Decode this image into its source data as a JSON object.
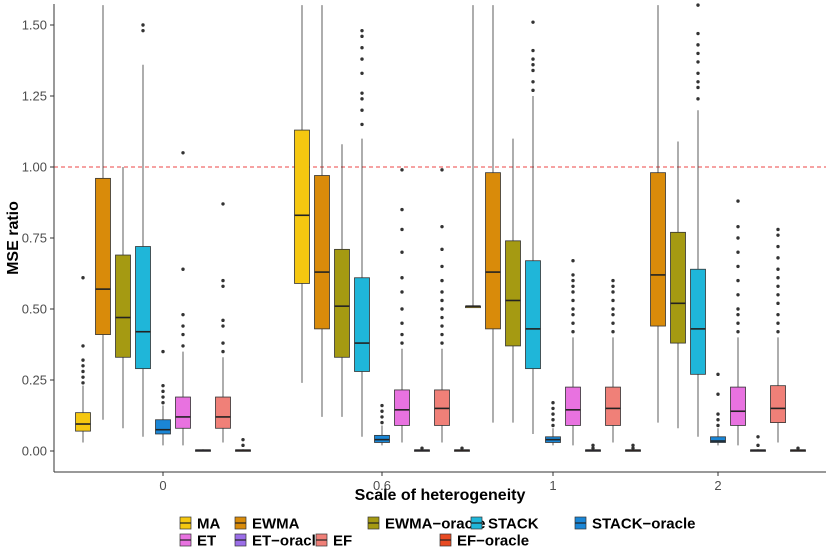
{
  "chart_data": {
    "type": "boxplot",
    "title": "",
    "xlabel": "Scale of heterogeneity",
    "ylabel": "MSE ratio",
    "ylim": [
      -0.07,
      1.57
    ],
    "yticks": [
      "0.00",
      "0.25",
      "0.50",
      "0.75",
      "1.00",
      "1.25",
      "1.50"
    ],
    "ytick_values": [
      0,
      0.25,
      0.5,
      0.75,
      1.0,
      1.25,
      1.5
    ],
    "reference_line": {
      "y": 1.0,
      "style": "dashed",
      "color": "#ee4444"
    },
    "categories": [
      "0",
      "0.6",
      "1",
      "2"
    ],
    "legend_position": "bottom",
    "series": [
      {
        "name": "MA",
        "color": "#f5c710",
        "boxes": [
          {
            "low": 0.03,
            "q1": 0.07,
            "median": 0.095,
            "q3": 0.135,
            "high": 0.23,
            "outliers": [
              0.24,
              0.26,
              0.28,
              0.3,
              0.32,
              0.37,
              0.61
            ]
          },
          {
            "low": 0.24,
            "q1": 0.59,
            "median": 0.83,
            "q3": 1.13,
            "high": 1.57,
            "outliers": []
          },
          {
            "low": 0.51,
            "q1": 0.51,
            "median": 0.51,
            "q3": 0.51,
            "high": 1.57,
            "outliers": []
          },
          null
        ]
      },
      {
        "name": "EWMA",
        "color": "#d98b0a",
        "boxes": [
          {
            "low": 0.11,
            "q1": 0.41,
            "median": 0.57,
            "q3": 0.96,
            "high": 1.57,
            "outliers": []
          },
          {
            "low": 0.12,
            "q1": 0.43,
            "median": 0.63,
            "q3": 0.97,
            "high": 1.57,
            "outliers": []
          },
          {
            "low": 0.1,
            "q1": 0.43,
            "median": 0.63,
            "q3": 0.98,
            "high": 1.57,
            "outliers": []
          },
          {
            "low": 0.1,
            "q1": 0.44,
            "median": 0.62,
            "q3": 0.98,
            "high": 1.57,
            "outliers": []
          }
        ]
      },
      {
        "name": "EWMA-oracle",
        "color": "#a59a12",
        "boxes": [
          {
            "low": 0.08,
            "q1": 0.33,
            "median": 0.47,
            "q3": 0.69,
            "high": 1.0,
            "outliers": []
          },
          {
            "low": 0.12,
            "q1": 0.33,
            "median": 0.51,
            "q3": 0.71,
            "high": 1.08,
            "outliers": []
          },
          {
            "low": 0.1,
            "q1": 0.37,
            "median": 0.53,
            "q3": 0.74,
            "high": 1.1,
            "outliers": []
          },
          {
            "low": 0.08,
            "q1": 0.38,
            "median": 0.52,
            "q3": 0.77,
            "high": 1.09,
            "outliers": []
          }
        ]
      },
      {
        "name": "STACK",
        "color": "#1fb6d9",
        "boxes": [
          {
            "low": 0.05,
            "q1": 0.29,
            "median": 0.42,
            "q3": 0.72,
            "high": 1.36,
            "outliers": [
              1.48,
              1.5
            ]
          },
          {
            "low": 0.05,
            "q1": 0.28,
            "median": 0.38,
            "q3": 0.61,
            "high": 1.1,
            "outliers": [
              1.15,
              1.2,
              1.24,
              1.26,
              1.33,
              1.38,
              1.42,
              1.46,
              1.48
            ]
          },
          {
            "low": 0.06,
            "q1": 0.29,
            "median": 0.43,
            "q3": 0.67,
            "high": 1.25,
            "outliers": [
              1.27,
              1.3,
              1.34,
              1.36,
              1.38,
              1.41,
              1.51
            ]
          },
          {
            "low": 0.05,
            "q1": 0.27,
            "median": 0.43,
            "q3": 0.64,
            "high": 1.2,
            "outliers": [
              1.24,
              1.28,
              1.3,
              1.33,
              1.37,
              1.4,
              1.43,
              1.47,
              1.57
            ]
          }
        ]
      },
      {
        "name": "STACK-oracle",
        "color": "#1a86d6",
        "boxes": [
          {
            "low": 0.02,
            "q1": 0.06,
            "median": 0.075,
            "q3": 0.11,
            "high": 0.16,
            "outliers": [
              0.17,
              0.19,
              0.21,
              0.23,
              0.35
            ]
          },
          {
            "low": 0.02,
            "q1": 0.03,
            "median": 0.04,
            "q3": 0.055,
            "high": 0.09,
            "outliers": [
              0.1,
              0.12,
              0.14,
              0.16
            ]
          },
          {
            "low": 0.02,
            "q1": 0.03,
            "median": 0.04,
            "q3": 0.05,
            "high": 0.08,
            "outliers": [
              0.09,
              0.11,
              0.13,
              0.15,
              0.17
            ]
          },
          {
            "low": 0.02,
            "q1": 0.03,
            "median": 0.035,
            "q3": 0.05,
            "high": 0.08,
            "outliers": [
              0.09,
              0.11,
              0.13,
              0.2,
              0.27
            ]
          }
        ]
      },
      {
        "name": "ET",
        "color": "#e872e0",
        "boxes": [
          {
            "low": 0.02,
            "q1": 0.08,
            "median": 0.12,
            "q3": 0.19,
            "high": 0.35,
            "outliers": [
              0.37,
              0.41,
              0.44,
              0.48,
              0.64,
              1.05
            ]
          },
          {
            "low": 0.03,
            "q1": 0.09,
            "median": 0.145,
            "q3": 0.215,
            "high": 0.36,
            "outliers": [
              0.38,
              0.41,
              0.45,
              0.5,
              0.56,
              0.61,
              0.7,
              0.78,
              0.85,
              0.99
            ]
          },
          {
            "low": 0.02,
            "q1": 0.09,
            "median": 0.145,
            "q3": 0.225,
            "high": 0.4,
            "outliers": [
              0.42,
              0.45,
              0.48,
              0.5,
              0.53,
              0.56,
              0.58,
              0.6,
              0.62,
              0.67
            ]
          },
          {
            "low": 0.02,
            "q1": 0.09,
            "median": 0.14,
            "q3": 0.225,
            "high": 0.4,
            "outliers": [
              0.42,
              0.45,
              0.48,
              0.5,
              0.55,
              0.6,
              0.65,
              0.7,
              0.75,
              0.79,
              0.88
            ]
          }
        ]
      },
      {
        "name": "ET-oracle",
        "color": "#9b6ee8",
        "boxes": [
          {
            "low": 0.0,
            "q1": 0.002,
            "median": 0.003,
            "q3": 0.004,
            "high": 0.006,
            "outliers": []
          },
          {
            "low": 0.0,
            "q1": 0.002,
            "median": 0.003,
            "q3": 0.004,
            "high": 0.006,
            "outliers": [
              0.01
            ]
          },
          {
            "low": 0.0,
            "q1": 0.002,
            "median": 0.003,
            "q3": 0.004,
            "high": 0.006,
            "outliers": [
              0.01,
              0.02
            ]
          },
          {
            "low": 0.0,
            "q1": 0.002,
            "median": 0.003,
            "q3": 0.004,
            "high": 0.006,
            "outliers": [
              0.02,
              0.05
            ]
          }
        ]
      },
      {
        "name": "EF",
        "color": "#f08078",
        "boxes": [
          {
            "low": 0.03,
            "q1": 0.08,
            "median": 0.12,
            "q3": 0.19,
            "high": 0.33,
            "outliers": [
              0.35,
              0.38,
              0.44,
              0.46,
              0.58,
              0.6,
              0.87
            ]
          },
          {
            "low": 0.03,
            "q1": 0.09,
            "median": 0.15,
            "q3": 0.215,
            "high": 0.36,
            "outliers": [
              0.38,
              0.41,
              0.44,
              0.47,
              0.5,
              0.53,
              0.56,
              0.6,
              0.65,
              0.71,
              0.79,
              0.99
            ]
          },
          {
            "low": 0.03,
            "q1": 0.09,
            "median": 0.15,
            "q3": 0.225,
            "high": 0.4,
            "outliers": [
              0.42,
              0.45,
              0.48,
              0.5,
              0.53,
              0.56,
              0.58,
              0.6
            ]
          },
          {
            "low": 0.03,
            "q1": 0.1,
            "median": 0.15,
            "q3": 0.23,
            "high": 0.4,
            "outliers": [
              0.42,
              0.45,
              0.48,
              0.52,
              0.55,
              0.58,
              0.61,
              0.64,
              0.68,
              0.72,
              0.76,
              0.78
            ]
          }
        ]
      },
      {
        "name": "EF-oracle",
        "color": "#e84a22",
        "boxes": [
          {
            "low": 0.0,
            "q1": 0.002,
            "median": 0.003,
            "q3": 0.004,
            "high": 0.006,
            "outliers": [
              0.02,
              0.04
            ]
          },
          {
            "low": 0.0,
            "q1": 0.002,
            "median": 0.003,
            "q3": 0.004,
            "high": 0.006,
            "outliers": [
              0.01
            ]
          },
          {
            "low": 0.0,
            "q1": 0.002,
            "median": 0.003,
            "q3": 0.004,
            "high": 0.006,
            "outliers": [
              0.01,
              0.02
            ]
          },
          {
            "low": 0.0,
            "q1": 0.002,
            "median": 0.003,
            "q3": 0.004,
            "high": 0.006,
            "outliers": [
              0.01
            ]
          }
        ]
      }
    ],
    "legend_order": [
      "MA",
      "EWMA",
      "EWMA-oracle",
      "STACK",
      "STACK-oracle",
      "ET",
      "ET-oracle",
      "EF",
      "EF-oracle"
    ]
  }
}
